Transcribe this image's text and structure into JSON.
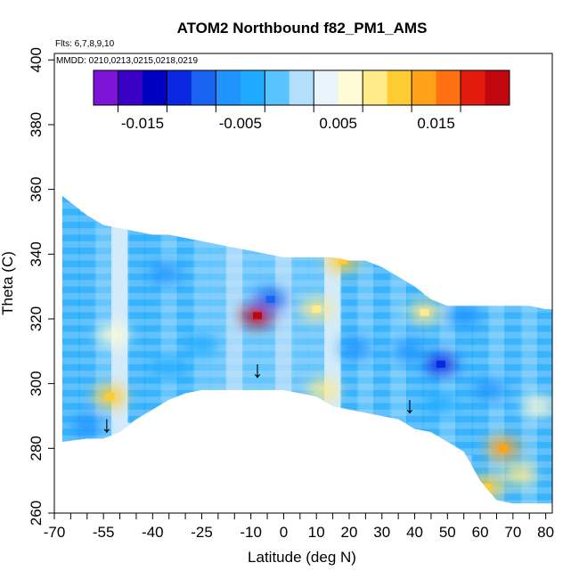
{
  "chart_data": {
    "type": "heatmap",
    "title": "ATOM2 Northbound f82_PM1_AMS",
    "subtitle_flights": "Flts: 6,7,8,9,10",
    "subtitle_dates": "MMDD: 0210,0213,0215,0218,0219",
    "xlabel": "Latitude (deg N)",
    "ylabel": "Theta (C)",
    "xlim": [
      -70,
      82
    ],
    "ylim": [
      260,
      402
    ],
    "x_ticks": [
      -70,
      -55,
      -40,
      -25,
      -10,
      0,
      10,
      20,
      30,
      40,
      50,
      60,
      70,
      80
    ],
    "x_tick_labels": [
      "-70",
      "-55",
      "-40",
      "-25",
      "-10",
      "0",
      "10",
      "20",
      "30",
      "40",
      "50",
      "60",
      "70",
      "80"
    ],
    "x_minor_ticks": [
      -65,
      -60,
      -50,
      -45,
      -35,
      -30,
      -20,
      -15,
      -5,
      5,
      15,
      25,
      35,
      45,
      55,
      65,
      75
    ],
    "y_ticks": [
      260,
      280,
      300,
      320,
      340,
      360,
      380,
      400
    ],
    "y_tick_labels": [
      "260",
      "280",
      "300",
      "320",
      "340",
      "360",
      "380",
      "400"
    ],
    "colorbar": {
      "range": [
        -0.02,
        0.0225
      ],
      "boundaries": [
        -0.02,
        -0.0175,
        -0.015,
        -0.0125,
        -0.01,
        -0.0075,
        -0.005,
        -0.0025,
        0.0,
        0.0025,
        0.005,
        0.0075,
        0.01,
        0.0125,
        0.015,
        0.0175,
        0.02,
        0.0225
      ],
      "major_boundaries": [
        -0.0175,
        -0.0125,
        -0.0075,
        -0.0025,
        0.0025,
        0.0075,
        0.0125,
        0.0175
      ],
      "tick_labels": [
        {
          "value": -0.015,
          "text": "-0.015"
        },
        {
          "value": -0.005,
          "text": "-0.005"
        },
        {
          "value": 0.005,
          "text": "0.005"
        },
        {
          "value": 0.015,
          "text": "0.015"
        }
      ],
      "colors": [
        "#7f14d9",
        "#3b00c8",
        "#0000c0",
        "#0a28e0",
        "#1a63f0",
        "#1f94ff",
        "#1eabff",
        "#58c3ff",
        "#b2dffc",
        "#eaf4fb",
        "#fffbd6",
        "#ffeb8a",
        "#ffcc33",
        "#ffa21a",
        "#ff7010",
        "#e31a0e",
        "#c2060f",
        "#9a1a1a"
      ]
    },
    "field_columns": [
      {
        "lat": -65,
        "bottom": 282,
        "top": 358,
        "value": -0.0045
      },
      {
        "lat": -60,
        "bottom": 283,
        "top": 352,
        "value": -0.004
      },
      {
        "lat": -55,
        "bottom": 283,
        "top": 349,
        "value": -0.002
      },
      {
        "lat": -50,
        "bottom": 285,
        "top": 348,
        "value": 0.003
      },
      {
        "lat": -45,
        "bottom": 289,
        "top": 347,
        "value": -0.003
      },
      {
        "lat": -40,
        "bottom": 292,
        "top": 346,
        "value": -0.0035
      },
      {
        "lat": -35,
        "bottom": 295,
        "top": 346,
        "value": -0.002
      },
      {
        "lat": -30,
        "bottom": 297,
        "top": 345,
        "value": -0.003
      },
      {
        "lat": -25,
        "bottom": 298,
        "top": 344,
        "value": -0.001
      },
      {
        "lat": -20,
        "bottom": 298,
        "top": 343,
        "value": -0.0025
      },
      {
        "lat": -15,
        "bottom": 298,
        "top": 342,
        "value": 0.0005
      },
      {
        "lat": -10,
        "bottom": 298,
        "top": 341,
        "value": -0.0015
      },
      {
        "lat": -5,
        "bottom": 298,
        "top": 340,
        "value": -0.0005
      },
      {
        "lat": 0,
        "bottom": 298,
        "top": 339,
        "value": 0.0015
      },
      {
        "lat": 5,
        "bottom": 297,
        "top": 339,
        "value": -0.002
      },
      {
        "lat": 10,
        "bottom": 296,
        "top": 339,
        "value": -0.001
      },
      {
        "lat": 15,
        "bottom": 293,
        "top": 339,
        "value": 0.0035
      },
      {
        "lat": 20,
        "bottom": 292,
        "top": 338,
        "value": -0.004
      },
      {
        "lat": 25,
        "bottom": 291,
        "top": 338,
        "value": -0.002
      },
      {
        "lat": 30,
        "bottom": 290,
        "top": 336,
        "value": -0.0035
      },
      {
        "lat": 35,
        "bottom": 289,
        "top": 333,
        "value": -0.001
      },
      {
        "lat": 40,
        "bottom": 286,
        "top": 330,
        "value": -0.003
      },
      {
        "lat": 45,
        "bottom": 285,
        "top": 326,
        "value": -0.005
      },
      {
        "lat": 50,
        "bottom": 282,
        "top": 324,
        "value": -0.002
      },
      {
        "lat": 55,
        "bottom": 279,
        "top": 324,
        "value": -0.004
      },
      {
        "lat": 60,
        "bottom": 270,
        "top": 324,
        "value": -0.0045
      },
      {
        "lat": 65,
        "bottom": 264,
        "top": 324,
        "value": -0.002
      },
      {
        "lat": 70,
        "bottom": 263,
        "top": 324,
        "value": -0.003
      },
      {
        "lat": 75,
        "bottom": 263,
        "top": 324,
        "value": -0.0015
      },
      {
        "lat": 80,
        "bottom": 263,
        "top": 323,
        "value": -0.0035
      }
    ],
    "patches": [
      {
        "lat": -53,
        "theta": 296,
        "value": 0.0115
      },
      {
        "lat": -52,
        "theta": 315,
        "value": 0.0055
      },
      {
        "lat": -36,
        "theta": 334,
        "value": -0.006
      },
      {
        "lat": -25,
        "theta": 312,
        "value": -0.0045
      },
      {
        "lat": -35,
        "theta": 305,
        "value": -0.005
      },
      {
        "lat": -60,
        "theta": 287,
        "value": -0.0075
      },
      {
        "lat": -8,
        "theta": 321,
        "value": 0.0205
      },
      {
        "lat": -4,
        "theta": 326,
        "value": -0.009
      },
      {
        "lat": 10,
        "theta": 323,
        "value": 0.0095
      },
      {
        "lat": 12,
        "theta": 298,
        "value": 0.0085
      },
      {
        "lat": 18,
        "theta": 338,
        "value": 0.0115
      },
      {
        "lat": 22,
        "theta": 311,
        "value": -0.0055
      },
      {
        "lat": 38,
        "theta": 310,
        "value": -0.006
      },
      {
        "lat": 43,
        "theta": 322,
        "value": 0.0095
      },
      {
        "lat": 48,
        "theta": 306,
        "value": -0.0105
      },
      {
        "lat": 63,
        "theta": 298,
        "value": -0.0075
      },
      {
        "lat": 55,
        "theta": 321,
        "value": -0.006
      },
      {
        "lat": 67,
        "theta": 280,
        "value": 0.0125
      },
      {
        "lat": 62,
        "theta": 268,
        "value": 0.0115
      },
      {
        "lat": 72,
        "theta": 272,
        "value": 0.0085
      },
      {
        "lat": 78,
        "theta": 293,
        "value": 0.0065
      },
      {
        "lat": 48,
        "theta": 294,
        "value": -0.0045
      }
    ],
    "markers": [
      {
        "lat": -54,
        "theta": 285,
        "text": "↓"
      },
      {
        "lat": -8,
        "theta": 302,
        "text": "↓"
      },
      {
        "lat": 38.5,
        "theta": 291,
        "text": "↓"
      }
    ]
  }
}
